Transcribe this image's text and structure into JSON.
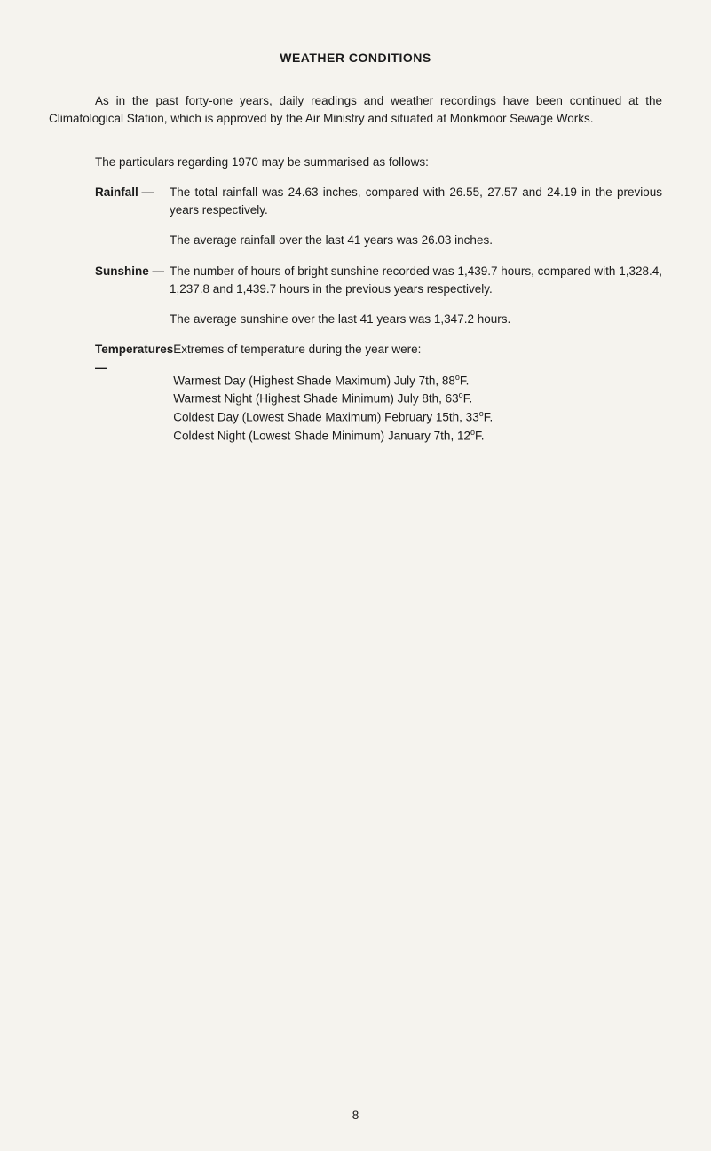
{
  "title": "WEATHER CONDITIONS",
  "intro": "As in the past forty-one years, daily readings and weather recordings have been continued at the Climatological Station, which is approved by the Air Ministry and situated at Monkmoor Sewage Works.",
  "summary_intro": "The particulars regarding 1970 may be summarised as follows:",
  "rainfall": {
    "label": "Rainfall —",
    "p1": "The total rainfall was 24.63 inches, compared with 26.55, 27.57 and 24.19 in the previous years respectively.",
    "p2": "The average rainfall over the last 41 years was 26.03 inches."
  },
  "sunshine": {
    "label": "Sunshine —",
    "p1": "The number of hours of bright sunshine recorded was 1,439.7 hours, compared with 1,328.4, 1,237.8 and 1,439.7 hours in the previous years respectively.",
    "p2": "The average sunshine over the last 41 years was 1,347.2 hours."
  },
  "temperatures": {
    "label": "Temperatures —",
    "p1": "Extremes of temperature during the year were:",
    "t1_prefix": "Warmest Day (Highest Shade Maximum) July 7th, 88",
    "t1_suffix": "F.",
    "t2_prefix": "Warmest Night (Highest Shade Minimum) July 8th, 63",
    "t2_suffix": "F.",
    "t3_prefix": "Coldest Day (Lowest Shade Maximum) February 15th, 33",
    "t3_suffix": "F.",
    "t4_prefix": "Coldest Night (Lowest Shade Minimum) January 7th, 12",
    "t4_suffix": "F.",
    "degree": "o"
  },
  "page_number": "8"
}
